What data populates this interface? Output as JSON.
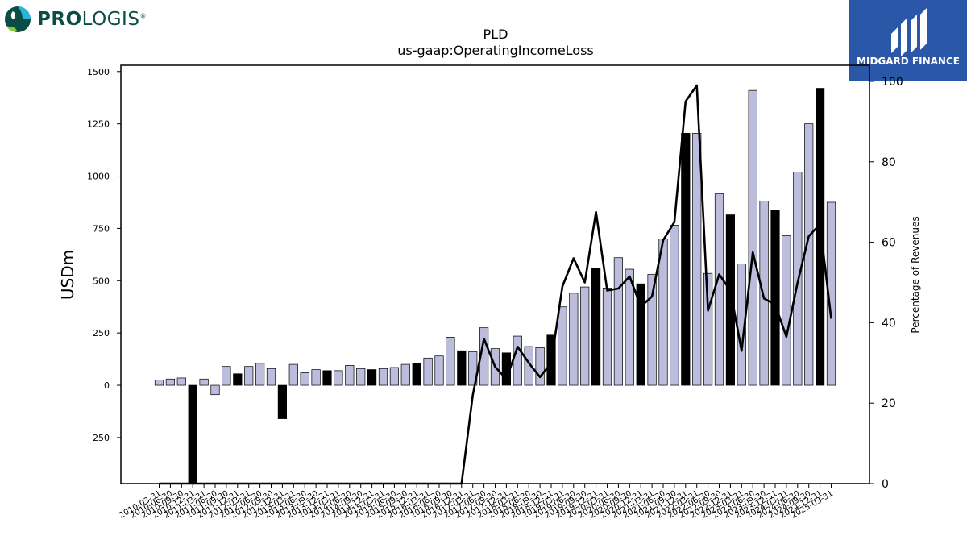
{
  "brand_left": {
    "logo_bold": "PRO",
    "logo_rest": "LOGIS",
    "reg": "®"
  },
  "brand_right": {
    "name": "MIDGARD FINANCE"
  },
  "colors": {
    "bar_normal": "#bcbcdc",
    "bar_q4": "#000000",
    "line": "#000000",
    "logo_blue": "#2a57a8",
    "logo_green": "#0b4d45"
  },
  "chart_data": {
    "type": "bar",
    "title": "PLD",
    "subtitle": "us-gaap:OperatingIncomeLoss",
    "ylabel": "USDm",
    "y2label": "Percentage of Revenues",
    "ylim": [
      -470,
      1530
    ],
    "y2lim": [
      0,
      104
    ],
    "yticks": [
      -250,
      0,
      250,
      500,
      750,
      1000,
      1250,
      1500
    ],
    "yticklabels": [
      "−250",
      "0",
      "250",
      "500",
      "750",
      "1000",
      "1250",
      "1500"
    ],
    "y2ticks": [
      0,
      20,
      40,
      60,
      80,
      100
    ],
    "y2ticklabels": [
      "0",
      "20",
      "40",
      "60",
      "80",
      "100"
    ],
    "categories": [
      "2010-03-31",
      "2010-06-30",
      "2010-09-30",
      "2010-12-31",
      "2011-03-31",
      "2011-06-30",
      "2011-09-30",
      "2011-12-31",
      "2012-03-31",
      "2012-06-30",
      "2012-09-30",
      "2012-12-31",
      "2013-03-31",
      "2013-06-30",
      "2013-09-30",
      "2013-12-31",
      "2014-03-31",
      "2014-06-30",
      "2014-09-30",
      "2014-12-31",
      "2015-03-31",
      "2015-06-30",
      "2015-09-30",
      "2015-12-31",
      "2016-03-31",
      "2016-06-30",
      "2016-09-30",
      "2016-12-31",
      "2017-03-31",
      "2017-06-30",
      "2017-09-30",
      "2017-12-31",
      "2018-03-31",
      "2018-06-30",
      "2018-09-30",
      "2018-12-31",
      "2019-03-31",
      "2019-06-30",
      "2019-09-30",
      "2019-12-31",
      "2020-03-31",
      "2020-06-30",
      "2020-09-30",
      "2020-12-31",
      "2021-03-31",
      "2021-06-30",
      "2021-09-30",
      "2021-12-31",
      "2022-03-31",
      "2022-06-30",
      "2022-09-30",
      "2022-12-31",
      "2023-03-31",
      "2023-06-30",
      "2023-09-30",
      "2023-12-31",
      "2024-03-31",
      "2024-06-30",
      "2024-09-30",
      "2024-12-31",
      "2025-03-31"
    ],
    "xticklabels": [
      "2010-03-31",
      "2010-06-30",
      "2010-09-30",
      "2010-12-31",
      "2011-03-31",
      "2011-06-30",
      "2011-09-30",
      "2011-12-31",
      "2012-03-31",
      "2012-06-30",
      "2012-09-30",
      "2012-12-31",
      "2013-03-31",
      "2013-06-30",
      "2013-09-30",
      "2013-12-31",
      "2014-03-31",
      "2014-06-30",
      "2014-09-30",
      "2014-12-31",
      "2015-03-31",
      "2015-06-30",
      "2015-09-30",
      "2015-12-31",
      "2016-03-31",
      "2016-06-30",
      "2016-09-30",
      "2016-12-31",
      "2017-03-31",
      "2017-06-30",
      "2017-09-30",
      "2017-12-31",
      "2018-03-31",
      "2018-06-30",
      "2018-09-30",
      "2018-12-31",
      "2019-03-31",
      "2019-06-30",
      "2019-09-30",
      "2019-12-31",
      "2020-03-31",
      "2020-06-30",
      "2020-09-30",
      "2020-12-31",
      "2021-03-31",
      "2021-06-30",
      "2021-09-30",
      "2021-12-31",
      "2022-03-31",
      "2022-06-30",
      "2022-09-30",
      "2022-12-31",
      "2023-03-31",
      "2023-06-30",
      "2023-09-30",
      "2023-12-31",
      "2024-03-31",
      "2024-06-30",
      "2024-09-30",
      "2024-12-31",
      "2025-03-31"
    ],
    "values": [
      25,
      30,
      35,
      -475,
      30,
      -45,
      90,
      55,
      90,
      105,
      80,
      -160,
      100,
      60,
      75,
      70,
      70,
      95,
      80,
      75,
      80,
      85,
      100,
      105,
      130,
      140,
      230,
      165,
      160,
      275,
      175,
      155,
      235,
      185,
      180,
      240,
      375,
      440,
      470,
      560,
      465,
      610,
      555,
      485,
      530,
      700,
      765,
      1205,
      1205,
      535,
      915,
      815,
      580,
      1410,
      880,
      835,
      715,
      1020,
      1250,
      1420,
      875
    ],
    "highlighted": [
      false,
      false,
      false,
      true,
      false,
      false,
      false,
      true,
      false,
      false,
      false,
      true,
      false,
      false,
      false,
      true,
      false,
      false,
      false,
      true,
      false,
      false,
      false,
      true,
      false,
      false,
      false,
      true,
      false,
      false,
      false,
      true,
      false,
      false,
      false,
      true,
      false,
      false,
      false,
      true,
      false,
      false,
      false,
      true,
      false,
      false,
      false,
      true,
      false,
      false,
      false,
      true,
      false,
      false,
      false,
      true,
      false,
      false,
      false,
      true,
      false
    ],
    "series": [
      {
        "values": [
          0,
          0,
          0,
          0,
          0,
          0,
          0,
          0,
          0,
          0,
          0,
          0,
          0,
          0,
          0,
          0,
          0,
          0,
          0,
          0,
          0,
          0,
          0,
          0,
          0,
          0,
          0,
          0,
          22,
          36,
          29,
          26,
          34,
          30,
          26.5,
          30,
          49,
          56,
          50,
          67.5,
          48,
          48.5,
          51.5,
          44,
          46.5,
          60.5,
          65,
          95,
          99,
          43,
          52,
          48,
          33,
          57.5,
          46,
          44.5,
          36.5,
          50,
          61.5,
          64.5,
          41
        ]
      }
    ]
  }
}
